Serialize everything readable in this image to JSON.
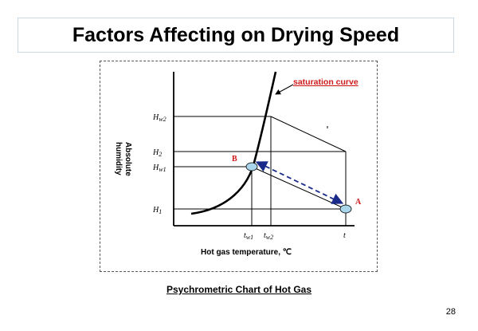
{
  "slide": {
    "title": "Factors Affecting on Drying Speed",
    "caption": "Psychrometric Chart of Hot Gas",
    "page_number": "28"
  },
  "diagram": {
    "saturation_label": "saturation curve",
    "y_axis_label_line1": "Absolute",
    "y_axis_label_line2": "humidity",
    "x_axis_label": "Hot gas temperature, ℃",
    "point_a": "A",
    "point_b": "B",
    "y_ticks": {
      "hw2_main": "H",
      "hw2_sub": "w2",
      "h2_main": "H",
      "h2_sub": "2",
      "hw1_main": "H",
      "hw1_sub": "w1",
      "h1_main": "H",
      "h1_sub": "1"
    },
    "x_ticks": {
      "tw1_main": "t",
      "tw1_sub": "w1",
      "tw2_main": "t",
      "tw2_sub": "w2",
      "t_main": "t"
    },
    "colors": {
      "label_red": "#d01818",
      "arrow_blue": "#1a2a8a",
      "point_fill": "#a9d6ea"
    }
  }
}
